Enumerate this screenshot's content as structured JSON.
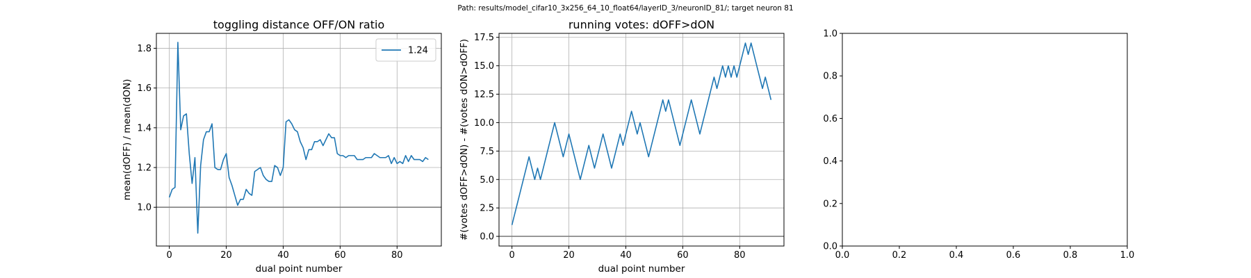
{
  "suptitle": "Path: results/model_cifar10_3x256_64_10_float64/layerID_3/neuronID_81/; target neuron 81",
  "colors": {
    "line": "#1f77b4",
    "grid": "#b0b0b0",
    "hline": "#808080",
    "axes": "#000000"
  },
  "chart_data": [
    {
      "type": "line",
      "title": "toggling distance OFF/ON ratio",
      "xlabel": "dual point number",
      "ylabel": "mean(dOFF) / mean(dON)",
      "xlim": [
        -4.55,
        95.55
      ],
      "ylim": [
        0.805,
        1.875
      ],
      "xticks": [
        0,
        20,
        40,
        60,
        80
      ],
      "yticks": [
        1.0,
        1.2,
        1.4,
        1.6,
        1.8
      ],
      "ytick_decimals": 1,
      "grid": true,
      "hline": 1.0,
      "legend": "top-right",
      "series": [
        {
          "name": "1.24",
          "x": [
            0,
            1,
            2,
            3,
            4,
            5,
            6,
            7,
            8,
            9,
            10,
            11,
            12,
            13,
            14,
            15,
            16,
            17,
            18,
            19,
            20,
            21,
            22,
            23,
            24,
            25,
            26,
            27,
            28,
            29,
            30,
            31,
            32,
            33,
            34,
            35,
            36,
            37,
            38,
            39,
            40,
            41,
            42,
            43,
            44,
            45,
            46,
            47,
            48,
            49,
            50,
            51,
            52,
            53,
            54,
            55,
            56,
            57,
            58,
            59,
            60,
            61,
            62,
            63,
            64,
            65,
            66,
            67,
            68,
            69,
            70,
            71,
            72,
            73,
            74,
            75,
            76,
            77,
            78,
            79,
            80,
            81,
            82,
            83,
            84,
            85,
            86,
            87,
            88,
            89,
            90,
            91
          ],
          "y": [
            1.05,
            1.09,
            1.1,
            1.83,
            1.39,
            1.46,
            1.47,
            1.27,
            1.12,
            1.25,
            0.87,
            1.21,
            1.34,
            1.38,
            1.38,
            1.42,
            1.2,
            1.19,
            1.19,
            1.24,
            1.27,
            1.15,
            1.11,
            1.06,
            1.01,
            1.04,
            1.04,
            1.09,
            1.07,
            1.06,
            1.18,
            1.19,
            1.2,
            1.16,
            1.14,
            1.13,
            1.13,
            1.21,
            1.2,
            1.16,
            1.2,
            1.43,
            1.44,
            1.42,
            1.39,
            1.38,
            1.33,
            1.3,
            1.24,
            1.29,
            1.29,
            1.33,
            1.33,
            1.34,
            1.31,
            1.34,
            1.37,
            1.35,
            1.35,
            1.27,
            1.26,
            1.26,
            1.25,
            1.26,
            1.26,
            1.26,
            1.24,
            1.24,
            1.24,
            1.25,
            1.25,
            1.25,
            1.27,
            1.26,
            1.25,
            1.25,
            1.25,
            1.26,
            1.22,
            1.25,
            1.22,
            1.23,
            1.22,
            1.26,
            1.23,
            1.26,
            1.24,
            1.24,
            1.24,
            1.23,
            1.25,
            1.24
          ]
        }
      ]
    },
    {
      "type": "line",
      "title": "running votes: dOFF>dON",
      "xlabel": "dual point number",
      "ylabel": "#(votes dOFF>dON) - #(votes dON>dOFF)",
      "xlim": [
        -4.55,
        95.55
      ],
      "ylim": [
        -0.85,
        17.85
      ],
      "xticks": [
        0,
        20,
        40,
        60,
        80
      ],
      "yticks": [
        0.0,
        2.5,
        5.0,
        7.5,
        10.0,
        12.5,
        15.0,
        17.5
      ],
      "ytick_decimals": 1,
      "grid": true,
      "hline": 0,
      "series": [
        {
          "x": [
            0,
            1,
            2,
            3,
            4,
            5,
            6,
            7,
            8,
            9,
            10,
            11,
            12,
            13,
            14,
            15,
            16,
            17,
            18,
            19,
            20,
            21,
            22,
            23,
            24,
            25,
            26,
            27,
            28,
            29,
            30,
            31,
            32,
            33,
            34,
            35,
            36,
            37,
            38,
            39,
            40,
            41,
            42,
            43,
            44,
            45,
            46,
            47,
            48,
            49,
            50,
            51,
            52,
            53,
            54,
            55,
            56,
            57,
            58,
            59,
            60,
            61,
            62,
            63,
            64,
            65,
            66,
            67,
            68,
            69,
            70,
            71,
            72,
            73,
            74,
            75,
            76,
            77,
            78,
            79,
            80,
            81,
            82,
            83,
            84,
            85,
            86,
            87,
            88,
            89,
            90,
            91
          ],
          "y": [
            1,
            2,
            3,
            4,
            5,
            6,
            7,
            6,
            5,
            6,
            5,
            6,
            7,
            8,
            9,
            10,
            9,
            8,
            7,
            8,
            9,
            8,
            7,
            6,
            5,
            6,
            7,
            8,
            7,
            6,
            7,
            8,
            9,
            8,
            7,
            6,
            7,
            8,
            9,
            8,
            9,
            10,
            11,
            10,
            9,
            10,
            9,
            8,
            7,
            8,
            9,
            10,
            11,
            12,
            11,
            12,
            11,
            10,
            9,
            8,
            9,
            10,
            11,
            12,
            11,
            10,
            9,
            10,
            11,
            12,
            13,
            14,
            13,
            14,
            15,
            14,
            15,
            14,
            15,
            14,
            15,
            16,
            17,
            16,
            17,
            16,
            15,
            14,
            13,
            14,
            13,
            12
          ]
        }
      ]
    },
    {
      "type": "line",
      "title": "",
      "xlabel": "",
      "ylabel": "",
      "xlim": [
        0.0,
        1.0
      ],
      "ylim": [
        0.0,
        1.0
      ],
      "xticks": [
        0.0,
        0.2,
        0.4,
        0.6,
        0.8,
        1.0
      ],
      "yticks": [
        0.0,
        0.2,
        0.4,
        0.6,
        0.8,
        1.0
      ],
      "xtick_decimals": 1,
      "ytick_decimals": 1,
      "grid": false,
      "series": []
    }
  ]
}
